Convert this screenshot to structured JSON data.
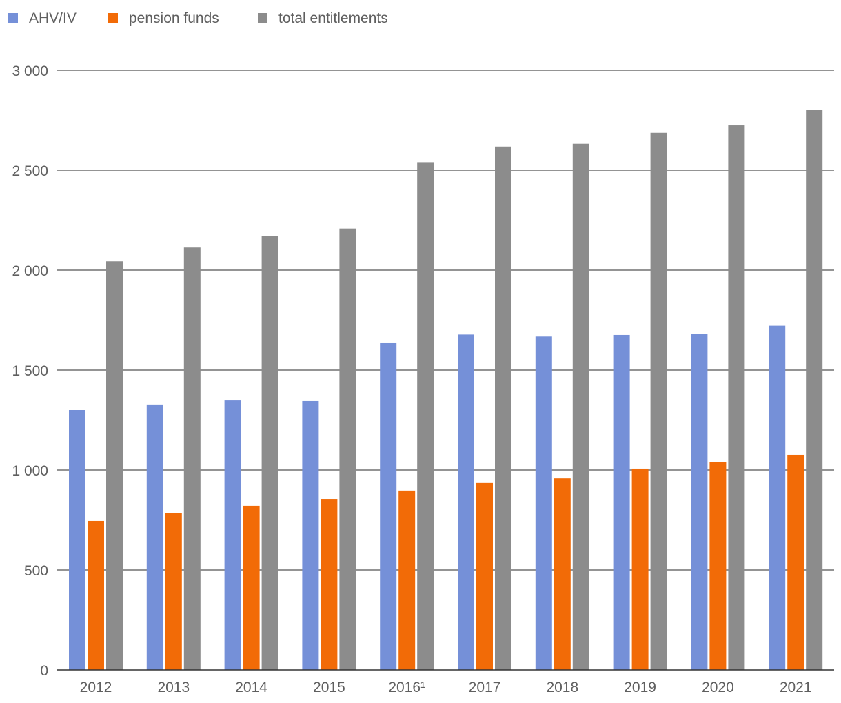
{
  "chart_data": {
    "type": "bar",
    "title": "",
    "xlabel": "",
    "ylabel": "",
    "categories": [
      "2012",
      "2013",
      "2014",
      "2015",
      "2016¹",
      "2017",
      "2018",
      "2019",
      "2020",
      "2021"
    ],
    "series": [
      {
        "name": "AHV/IV",
        "color": "#7590d8",
        "values": [
          1300,
          1328,
          1348,
          1345,
          1638,
          1678,
          1668,
          1676,
          1682,
          1722
        ]
      },
      {
        "name": "pension funds",
        "color": "#f26b07",
        "values": [
          745,
          783,
          821,
          855,
          897,
          935,
          958,
          1007,
          1038,
          1076
        ]
      },
      {
        "name": "total entitlements",
        "color": "#8c8c8c",
        "values": [
          2044,
          2113,
          2170,
          2208,
          2540,
          2618,
          2632,
          2687,
          2724,
          2803
        ]
      }
    ],
    "ylim": [
      0,
      3000
    ],
    "yticks": [
      0,
      500,
      1000,
      1500,
      2000,
      2500,
      3000
    ],
    "ytick_labels": [
      "0",
      "500",
      "1 000",
      "1 500",
      "2 000",
      "2 500",
      "3 000"
    ],
    "grid": true,
    "legend_position": "top-left"
  }
}
